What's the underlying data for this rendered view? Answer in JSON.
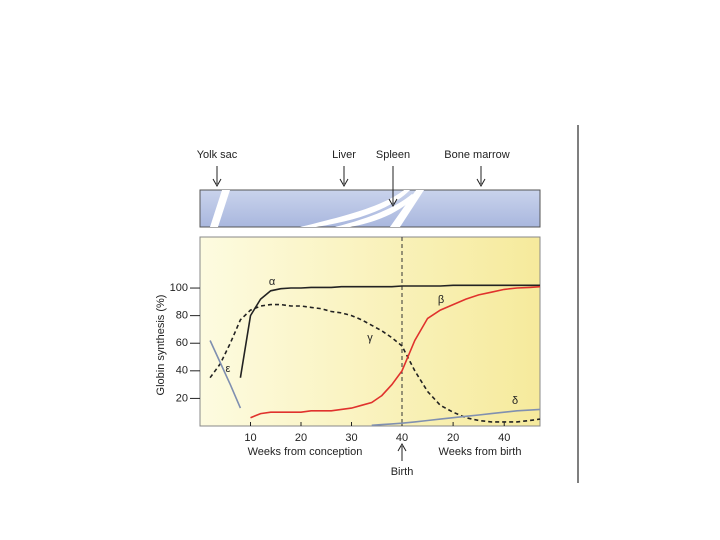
{
  "chart_data": {
    "type": "line",
    "ylabel": "Globin synthesis (%)",
    "xlabel": "Weeks from conception",
    "x2label": "Weeks from birth",
    "birth_label": "Birth",
    "birth_week": 40,
    "organs": [
      "Yolk sac",
      "Liver",
      "Spleen",
      "Bone marrow"
    ],
    "x": [
      0,
      2,
      4,
      6,
      8,
      10,
      12,
      14,
      16,
      18,
      20,
      22,
      24,
      26,
      28,
      30,
      32,
      34,
      36,
      38,
      40
    ],
    "x2": [
      0,
      5,
      10,
      15,
      20,
      25,
      30,
      35,
      40,
      45,
      50,
      54
    ],
    "xlim": [
      0,
      40
    ],
    "x2lim": [
      0,
      54
    ],
    "xticks": [
      10,
      20,
      30,
      40
    ],
    "x2ticks": [
      20,
      40
    ],
    "ylim": [
      0,
      137
    ],
    "yticks": [
      20,
      40,
      60,
      80,
      100
    ],
    "series": [
      {
        "name": "α",
        "color": "#222222",
        "dashed": false,
        "values": [
          null,
          null,
          null,
          null,
          35,
          80,
          92,
          98,
          99.5,
          100,
          100,
          100.5,
          100.5,
          100.5,
          101,
          101,
          101,
          101,
          101,
          101,
          101.5
        ],
        "values2": [
          101.5,
          101.5,
          101.5,
          101.5,
          102,
          102,
          102,
          102,
          102,
          102,
          102,
          102
        ]
      },
      {
        "name": "γ",
        "color": "#222222",
        "dashed": true,
        "values": [
          null,
          35,
          45,
          60,
          77,
          84,
          87,
          88,
          88,
          87,
          87,
          86,
          85,
          83,
          82,
          80,
          77,
          73,
          69,
          64,
          58
        ],
        "values2": [
          58,
          40,
          25,
          15,
          10,
          6,
          4,
          3,
          3,
          3,
          4,
          5
        ]
      },
      {
        "name": "β",
        "color": "#e0322d",
        "dashed": false,
        "values": [
          null,
          null,
          null,
          null,
          null,
          6,
          9,
          10,
          10,
          10,
          10,
          11,
          11,
          11,
          12,
          13,
          15,
          17,
          22,
          30,
          40
        ],
        "values2": [
          40,
          62,
          78,
          84,
          88,
          92,
          95,
          97,
          99,
          100,
          100.5,
          101
        ]
      },
      {
        "name": "ε",
        "color": "#7f8fb0",
        "dashed": false,
        "values": [
          null,
          62,
          46,
          30,
          13,
          null,
          null,
          null,
          null,
          null,
          null,
          null,
          null,
          null,
          null,
          null,
          null,
          null,
          null,
          null,
          null
        ],
        "values2": [
          null,
          null,
          null,
          null,
          null,
          null,
          null,
          null,
          null,
          null,
          null,
          null
        ]
      },
      {
        "name": "δ",
        "color": "#8090b0",
        "dashed": false,
        "values": [
          null,
          null,
          null,
          null,
          null,
          null,
          null,
          null,
          null,
          null,
          null,
          null,
          null,
          null,
          null,
          null,
          null,
          0.5,
          1,
          1.5,
          2
        ],
        "values2": [
          2,
          3,
          4,
          5,
          6,
          7,
          8,
          9,
          10,
          11,
          11.5,
          12
        ]
      }
    ]
  }
}
